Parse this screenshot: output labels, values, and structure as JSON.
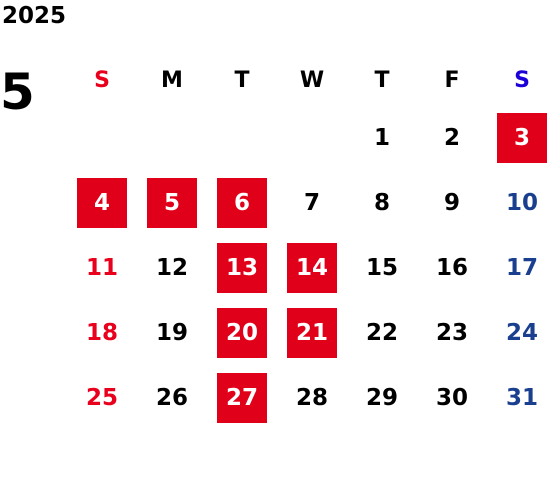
{
  "calendar": {
    "year": "2025",
    "month": "5",
    "weekdays": [
      "S",
      "M",
      "T",
      "W",
      "T",
      "F",
      "S"
    ],
    "start_offset": 4,
    "days_in_month": 31,
    "holidays": [
      3,
      4,
      5,
      6,
      13,
      14,
      20,
      21,
      27
    ],
    "colors": {
      "holiday_bg": "#e0001a",
      "sunday": "#e8001c",
      "saturday_header": "#1c00d8",
      "saturday": "#1a3f8f",
      "weekday": "#000000"
    }
  }
}
